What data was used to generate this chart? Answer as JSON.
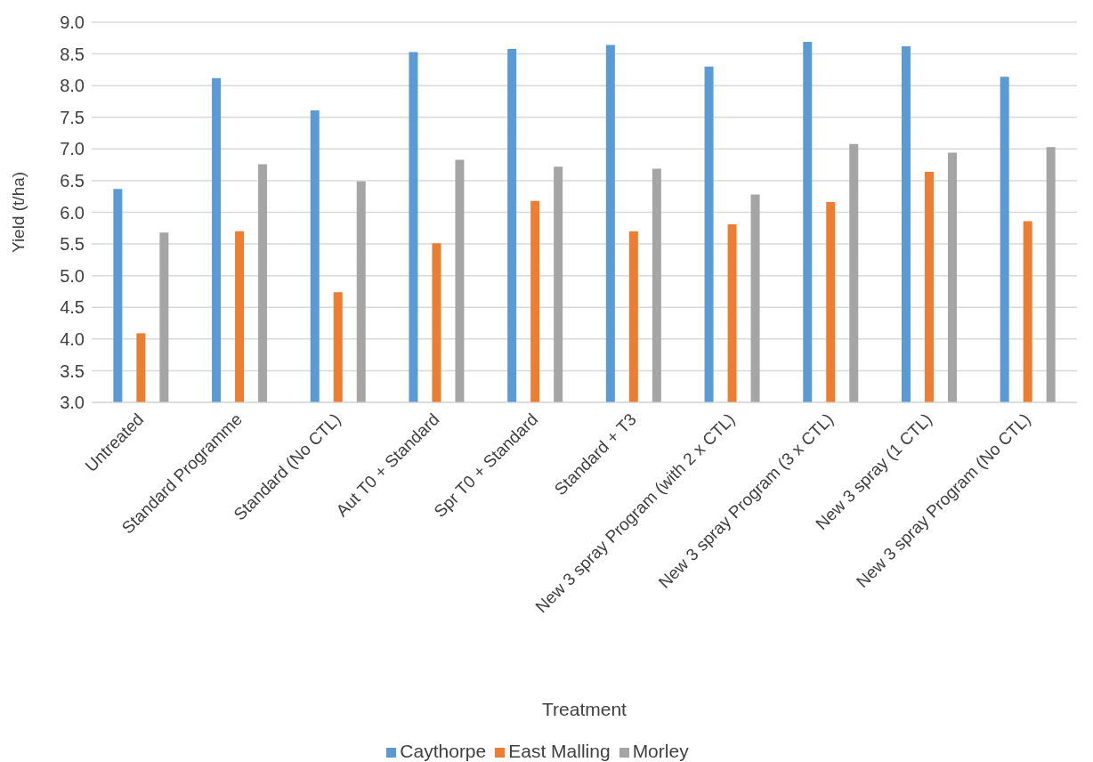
{
  "chart_data": {
    "type": "bar",
    "xlabel": "Treatment",
    "ylabel": "Yield (t/ha)",
    "categories": [
      "Untreated",
      "Standard Programme",
      "Standard (No CTL)",
      "Aut T0 + Standard",
      "Spr T0 + Standard",
      "Standard + T3",
      "New 3 spray Program (with 2 x CTL)",
      "New 3 spray Program (3 x CTL)",
      "New 3 spray (1 CTL)",
      "New 3 spray Program (No CTL)"
    ],
    "series": [
      {
        "name": "Caythorpe",
        "color": "#5b9bd5",
        "values": [
          6.37,
          8.12,
          7.61,
          8.53,
          8.58,
          8.64,
          8.3,
          8.69,
          8.62,
          8.14
        ]
      },
      {
        "name": "East Malling",
        "color": "#ed7d31",
        "values": [
          4.09,
          5.7,
          4.74,
          5.51,
          6.18,
          5.7,
          5.81,
          6.16,
          6.64,
          5.86
        ]
      },
      {
        "name": "Morley",
        "color": "#a5a5a5",
        "values": [
          5.68,
          6.76,
          6.49,
          6.83,
          6.72,
          6.69,
          6.28,
          7.08,
          6.94,
          7.03
        ]
      }
    ],
    "ylim": [
      3.0,
      9.0
    ],
    "yticks": [
      {
        "value": 3,
        "label": "3.0"
      },
      {
        "value": 3.5,
        "label": "3.5"
      },
      {
        "value": 4,
        "label": "4.0"
      },
      {
        "value": 4.5,
        "label": "4.5"
      },
      {
        "value": 5,
        "label": "5.0"
      },
      {
        "value": 5.5,
        "label": "5.5"
      },
      {
        "value": 6,
        "label": "6.0"
      },
      {
        "value": 6.5,
        "label": "6.5"
      },
      {
        "value": 7,
        "label": "7.0"
      },
      {
        "value": 7.5,
        "label": "7.5"
      },
      {
        "value": 8,
        "label": "8.0"
      },
      {
        "value": 8.5,
        "label": "8.5"
      },
      {
        "value": 9,
        "label": "9.0"
      }
    ],
    "grid": "y",
    "legend": "bottom"
  }
}
